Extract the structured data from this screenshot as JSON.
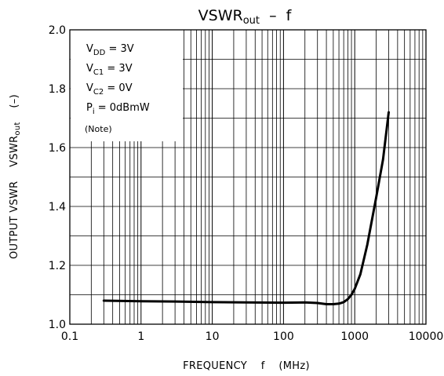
{
  "chart_data": {
    "type": "line",
    "title": {
      "main": "VSWR",
      "sub": "out",
      "suffix": "  –  f"
    },
    "xlabel": "FREQUENCY    f    (MHz)",
    "ylabel": {
      "left": "OUTPUT VSWR    VSWR",
      "sub": "out",
      "right": "    (–)"
    },
    "x_scale": "log",
    "xlim": [
      0.1,
      10000
    ],
    "ylim": [
      1.0,
      2.0
    ],
    "x_ticks": [
      "0.1",
      "1",
      "10",
      "100",
      "1000",
      "10000"
    ],
    "y_ticks": [
      "1.0",
      "1.2",
      "1.4",
      "1.6",
      "1.8",
      "2.0"
    ],
    "grid": true,
    "conditions": [
      {
        "main": "V",
        "sub": "DD",
        "rest": " = 3V"
      },
      {
        "main": "V",
        "sub": "C1",
        "rest": " = 3V"
      },
      {
        "main": "V",
        "sub": "C2",
        "rest": " = 0V"
      },
      {
        "main": "P",
        "sub": "i",
        "rest": " = 0dBmW"
      }
    ],
    "note": "(Note)",
    "series": [
      {
        "color": "#000000",
        "x": [
          0.3,
          1,
          3,
          10,
          30,
          100,
          200,
          300,
          400,
          500,
          600,
          700,
          800,
          900,
          1000,
          1200,
          1500,
          2000,
          2500,
          3000
        ],
        "y": [
          1.08,
          1.078,
          1.077,
          1.075,
          1.074,
          1.073,
          1.074,
          1.072,
          1.068,
          1.068,
          1.07,
          1.075,
          1.085,
          1.1,
          1.12,
          1.17,
          1.27,
          1.43,
          1.56,
          1.72
        ]
      }
    ]
  }
}
